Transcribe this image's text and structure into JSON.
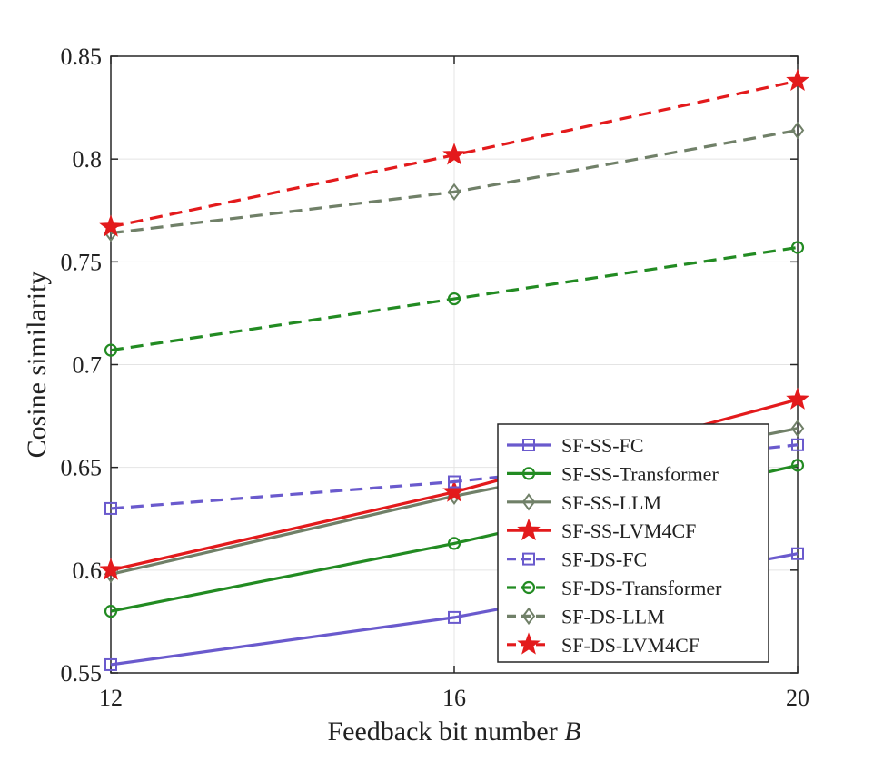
{
  "chart_data": {
    "type": "line",
    "xlabel": "Feedback bit number",
    "xlabel_var": "B",
    "ylabel": "Cosine similarity",
    "x": [
      12,
      16,
      20
    ],
    "xlim": [
      12,
      20
    ],
    "ylim": [
      0.55,
      0.85
    ],
    "xticks": [
      "12",
      "16",
      "20"
    ],
    "yticks": [
      "0.55",
      "0.6",
      "0.65",
      "0.7",
      "0.75",
      "0.8",
      "0.85"
    ],
    "grid": true,
    "legend_position": "bottom-right",
    "series": [
      {
        "name": "SF-SS-FC",
        "values": [
          0.554,
          0.577,
          0.608
        ],
        "color": "#6a5acd",
        "dash": "solid",
        "marker": "square"
      },
      {
        "name": "SF-SS-Transformer",
        "values": [
          0.58,
          0.613,
          0.651
        ],
        "color": "#228b22",
        "dash": "solid",
        "marker": "circle"
      },
      {
        "name": "SF-SS-LLM",
        "values": [
          0.598,
          0.636,
          0.669
        ],
        "color": "#708068",
        "dash": "solid",
        "marker": "diamond"
      },
      {
        "name": "SF-SS-LVM4CF",
        "values": [
          0.6,
          0.638,
          0.683
        ],
        "color": "#e31a1c",
        "dash": "solid",
        "marker": "star"
      },
      {
        "name": "SF-DS-FC",
        "values": [
          0.63,
          0.643,
          0.661
        ],
        "color": "#6a5acd",
        "dash": "dashed",
        "marker": "square"
      },
      {
        "name": "SF-DS-Transformer",
        "values": [
          0.707,
          0.732,
          0.757
        ],
        "color": "#228b22",
        "dash": "dashed",
        "marker": "circle"
      },
      {
        "name": "SF-DS-LLM",
        "values": [
          0.764,
          0.784,
          0.814
        ],
        "color": "#708068",
        "dash": "dashed",
        "marker": "diamond"
      },
      {
        "name": "SF-DS-LVM4CF",
        "values": [
          0.767,
          0.802,
          0.838
        ],
        "color": "#e31a1c",
        "dash": "dashed",
        "marker": "star"
      }
    ]
  }
}
